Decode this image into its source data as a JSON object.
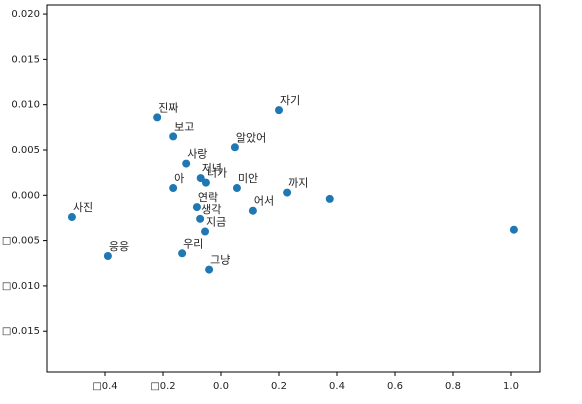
{
  "chart_data": {
    "type": "scatter",
    "color": "#1f77b4",
    "x": [
      -0.22,
      -0.165,
      0.2,
      0.048,
      -0.12,
      -0.07,
      -0.052,
      -0.165,
      0.055,
      0.228,
      0.11,
      -0.083,
      -0.072,
      -0.055,
      -0.514,
      -0.39,
      -0.134,
      -0.041,
      0.375,
      1.01
    ],
    "values": [
      0.0086,
      0.0065,
      0.0094,
      0.0053,
      0.0035,
      0.0019,
      0.0014,
      0.0008,
      0.0008,
      0.0003,
      -0.0017,
      -0.0013,
      -0.0026,
      -0.004,
      -0.0024,
      -0.0067,
      -0.0064,
      -0.0082,
      -0.0004,
      -0.0038
    ],
    "labels": [
      "진짜",
      "보고",
      "자기",
      "알았어",
      "사랑",
      "저녁",
      "너가",
      "아",
      "미안",
      "까지",
      "어서",
      "연락",
      "생각",
      "지금",
      "사진",
      "응응",
      "우리",
      "그냥",
      null,
      null
    ],
    "xlim": [
      -0.6,
      1.1
    ],
    "ylim": [
      -0.0195,
      0.021
    ],
    "xticks": [
      {
        "value": -0.4,
        "label": "□0.4"
      },
      {
        "value": -0.2,
        "label": "□0.2"
      },
      {
        "value": 0.0,
        "label": "0.0"
      },
      {
        "value": 0.2,
        "label": "0.2"
      },
      {
        "value": 0.4,
        "label": "0.4"
      },
      {
        "value": 0.6,
        "label": "0.6"
      },
      {
        "value": 0.8,
        "label": "0.8"
      },
      {
        "value": 1.0,
        "label": "1.0"
      }
    ],
    "yticks": [
      {
        "value": 0.02,
        "label": "0.020"
      },
      {
        "value": 0.015,
        "label": "0.015"
      },
      {
        "value": 0.01,
        "label": "0.010"
      },
      {
        "value": 0.005,
        "label": "0.005"
      },
      {
        "value": 0.0,
        "label": "0.000"
      },
      {
        "value": -0.005,
        "label": "□0.005"
      },
      {
        "value": -0.01,
        "label": "□0.010"
      },
      {
        "value": -0.015,
        "label": "□0.015"
      }
    ]
  }
}
